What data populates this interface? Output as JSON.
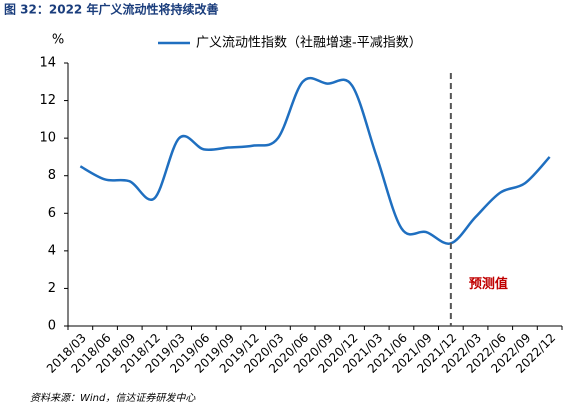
{
  "chart_data": {
    "type": "line",
    "title": "图 32：2022 年广义流动性将持续改善",
    "y_label": "%",
    "source": "资料来源：Wind，信达证券研发中心",
    "categories": [
      "2018/03",
      "2018/06",
      "2018/09",
      "2018/12",
      "2019/03",
      "2019/06",
      "2019/09",
      "2019/12",
      "2020/03",
      "2020/06",
      "2020/09",
      "2020/12",
      "2021/03",
      "2021/06",
      "2021/09",
      "2021/12",
      "2022/03",
      "2022/06",
      "2022/09",
      "2022/12"
    ],
    "series": [
      {
        "name": "广义流动性指数（社融增速-平减指数）",
        "color": "#1f6fc0",
        "values": [
          8.5,
          7.8,
          7.7,
          6.8,
          10.0,
          9.4,
          9.5,
          9.6,
          10.0,
          13.0,
          12.9,
          12.8,
          9.0,
          5.2,
          5.0,
          4.4,
          5.8,
          7.1,
          7.6,
          9.0
        ]
      }
    ],
    "ylim": [
      0,
      14
    ],
    "yticks": [
      0,
      2,
      4,
      6,
      8,
      10,
      12,
      14
    ],
    "annotation": {
      "text": "预测值",
      "x": "2021/12",
      "color": "#c00000"
    },
    "legend": "top",
    "grid": false
  }
}
